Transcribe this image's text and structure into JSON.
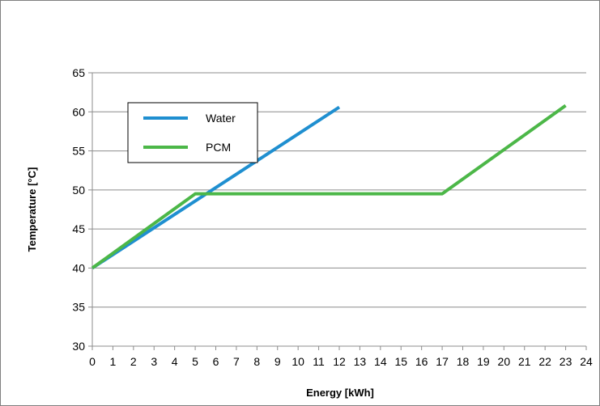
{
  "chart_data": {
    "type": "line",
    "title": "",
    "xlabel": "Energy [kWh]",
    "ylabel": "Temperature [°C]",
    "xlim": [
      0,
      24
    ],
    "ylim": [
      30,
      65
    ],
    "x_ticks": [
      0,
      1,
      2,
      3,
      4,
      5,
      6,
      7,
      8,
      9,
      10,
      11,
      12,
      13,
      14,
      15,
      16,
      17,
      18,
      19,
      20,
      21,
      22,
      23,
      24
    ],
    "y_ticks": [
      30,
      35,
      40,
      45,
      50,
      55,
      60,
      65
    ],
    "grid": "horizontal",
    "legend_position": "top-left",
    "series": [
      {
        "name": "Water",
        "color": "#1f8fd0",
        "points": [
          [
            0,
            40
          ],
          [
            12,
            60.6
          ]
        ]
      },
      {
        "name": "PCM",
        "color": "#4cb748",
        "points": [
          [
            0,
            40
          ],
          [
            5,
            49.5
          ],
          [
            17,
            49.5
          ],
          [
            23,
            60.8
          ]
        ]
      }
    ]
  }
}
